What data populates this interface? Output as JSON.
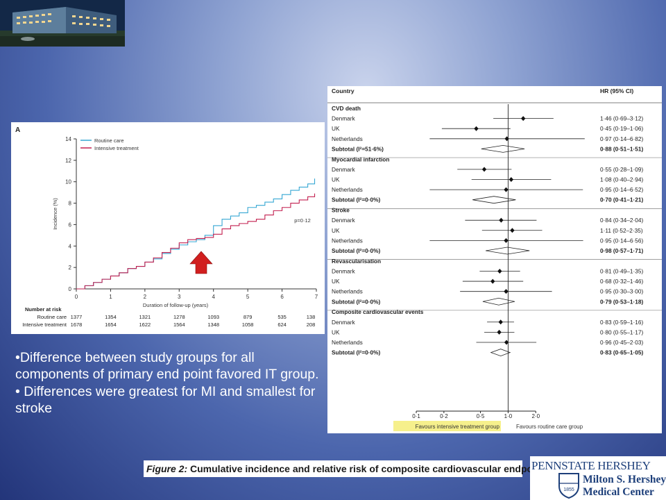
{
  "bullets": [
    "•Difference between study groups for all components of primary end point favored IT group.",
    "• Differences were greatest for MI and smallest for stroke"
  ],
  "caption": {
    "figure": "Figure 2:",
    "text": "Cumulative incidence and relative risk of composite cardiovascular endpoint"
  },
  "logo": {
    "top": "PENNSTATE HERSHEY",
    "line1": "Milton S. Hershey",
    "line2": "Medical Center",
    "year": "1855"
  },
  "colors": {
    "routine": "#35a7d3",
    "intensive": "#c21f4f",
    "arrow": "#d11f1f",
    "highlight": "#f6f08c"
  },
  "chart_data": [
    {
      "type": "line",
      "panel_label": "A",
      "xlabel": "Duration of follow-up (years)",
      "ylabel": "Incidence (%)",
      "xlim": [
        0,
        7
      ],
      "ylim": [
        0,
        14
      ],
      "xticks": [
        "0",
        "1",
        "2",
        "3",
        "4",
        "5",
        "6",
        "7"
      ],
      "yticks": [
        "0",
        "2",
        "4",
        "6",
        "8",
        "10",
        "12",
        "14"
      ],
      "legend": "top-left",
      "annotation": "p=0·12",
      "series": [
        {
          "name": "Routine care",
          "color": "#35a7d3",
          "points": [
            [
              0,
              0
            ],
            [
              0.25,
              0.3
            ],
            [
              0.5,
              0.6
            ],
            [
              0.75,
              0.9
            ],
            [
              1,
              1.2
            ],
            [
              1.25,
              1.5
            ],
            [
              1.5,
              1.9
            ],
            [
              1.75,
              2.1
            ],
            [
              2,
              2.5
            ],
            [
              2.25,
              2.8
            ],
            [
              2.5,
              3.3
            ],
            [
              2.75,
              3.7
            ],
            [
              3,
              4.1
            ],
            [
              3.25,
              4.4
            ],
            [
              3.5,
              4.6
            ],
            [
              3.75,
              5.0
            ],
            [
              4,
              5.9
            ],
            [
              4.25,
              6.5
            ],
            [
              4.5,
              6.8
            ],
            [
              4.75,
              7.1
            ],
            [
              5,
              7.6
            ],
            [
              5.25,
              7.8
            ],
            [
              5.5,
              8.1
            ],
            [
              5.75,
              8.4
            ],
            [
              6,
              8.8
            ],
            [
              6.25,
              9.2
            ],
            [
              6.5,
              9.5
            ],
            [
              6.75,
              9.8
            ],
            [
              6.9,
              9.8
            ],
            [
              6.95,
              10.3
            ]
          ]
        },
        {
          "name": "Intensive treatment",
          "color": "#c21f4f",
          "points": [
            [
              0,
              0
            ],
            [
              0.25,
              0.3
            ],
            [
              0.5,
              0.6
            ],
            [
              0.75,
              0.9
            ],
            [
              1,
              1.2
            ],
            [
              1.25,
              1.5
            ],
            [
              1.5,
              1.9
            ],
            [
              1.75,
              2.1
            ],
            [
              2,
              2.5
            ],
            [
              2.25,
              2.9
            ],
            [
              2.5,
              3.4
            ],
            [
              2.75,
              3.8
            ],
            [
              3,
              4.3
            ],
            [
              3.25,
              4.6
            ],
            [
              3.5,
              4.7
            ],
            [
              3.75,
              4.8
            ],
            [
              4,
              5.1
            ],
            [
              4.25,
              5.6
            ],
            [
              4.5,
              5.9
            ],
            [
              4.75,
              6.1
            ],
            [
              5,
              6.3
            ],
            [
              5.25,
              6.5
            ],
            [
              5.5,
              6.9
            ],
            [
              5.75,
              7.3
            ],
            [
              6,
              7.6
            ],
            [
              6.25,
              8.0
            ],
            [
              6.5,
              8.3
            ],
            [
              6.75,
              8.6
            ],
            [
              6.95,
              8.9
            ]
          ]
        }
      ],
      "risk_table": {
        "title": "Number at risk",
        "rows": [
          {
            "label": "Routine care",
            "values": [
              "1377",
              "1354",
              "1321",
              "1278",
              "1093",
              "879",
              "535",
              "138"
            ]
          },
          {
            "label": "Intensive treatment",
            "values": [
              "1678",
              "1654",
              "1622",
              "1564",
              "1348",
              "1058",
              "624",
              "208"
            ]
          }
        ]
      }
    },
    {
      "type": "forest",
      "header_left": "Country",
      "header_right": "HR (95% CI)",
      "x_scale": "log",
      "xticks": [
        "0·1",
        "0·2",
        "0·5",
        "1·0",
        "2·0"
      ],
      "xtick_values": [
        0.1,
        0.2,
        0.5,
        1.0,
        2.0
      ],
      "favours_left": "Favours intensive treatment group",
      "favours_right": "Favours routine care group",
      "groups": [
        {
          "title": "CVD death",
          "rows": [
            {
              "label": "Denmark",
              "hr": 1.46,
              "lo": 0.69,
              "hi": 3.12,
              "text": "1·46 (0·69–3·12)"
            },
            {
              "label": "UK",
              "hr": 0.45,
              "lo": 0.19,
              "hi": 1.06,
              "text": "0·45 (0·19–1·06)"
            },
            {
              "label": "Netherlands",
              "hr": 0.97,
              "lo": 0.14,
              "hi": 6.82,
              "text": "0·97 (0·14–6·82)"
            }
          ],
          "subtotal": {
            "label": "Subtotal (I²=51·6%)",
            "hr": 0.88,
            "lo": 0.51,
            "hi": 1.51,
            "text": "0·88 (0·51–1·51)"
          }
        },
        {
          "title": "Myocardial infarction",
          "rows": [
            {
              "label": "Denmark",
              "hr": 0.55,
              "lo": 0.28,
              "hi": 1.09,
              "text": "0·55 (0·28–1·09)"
            },
            {
              "label": "UK",
              "hr": 1.08,
              "lo": 0.4,
              "hi": 2.94,
              "text": "1·08 (0·40–2·94)"
            },
            {
              "label": "Netherlands",
              "hr": 0.95,
              "lo": 0.14,
              "hi": 6.52,
              "text": "0·95 (0·14–6·52)"
            }
          ],
          "subtotal": {
            "label": "Subtotal (I²=0·0%)",
            "hr": 0.7,
            "lo": 0.41,
            "hi": 1.21,
            "text": "0·70 (0·41–1·21)"
          }
        },
        {
          "title": "Stroke",
          "rows": [
            {
              "label": "Denmark",
              "hr": 0.84,
              "lo": 0.34,
              "hi": 2.04,
              "text": "0·84 (0·34–2·04)"
            },
            {
              "label": "UK",
              "hr": 1.11,
              "lo": 0.52,
              "hi": 2.35,
              "text": "1·11 (0·52–2·35)"
            },
            {
              "label": "Netherlands",
              "hr": 0.95,
              "lo": 0.14,
              "hi": 6.56,
              "text": "0·95 (0·14–6·56)"
            }
          ],
          "subtotal": {
            "label": "Subtotal (I²=0·0%)",
            "hr": 0.98,
            "lo": 0.57,
            "hi": 1.71,
            "text": "0·98 (0·57–1·71)"
          }
        },
        {
          "title": "Revascularisation",
          "rows": [
            {
              "label": "Denmark",
              "hr": 0.81,
              "lo": 0.49,
              "hi": 1.35,
              "text": "0·81 (0·49–1·35)"
            },
            {
              "label": "UK",
              "hr": 0.68,
              "lo": 0.32,
              "hi": 1.46,
              "text": "0·68 (0·32–1·46)"
            },
            {
              "label": "Netherlands",
              "hr": 0.95,
              "lo": 0.3,
              "hi": 3.0,
              "text": "0·95 (0·30–3·00)"
            }
          ],
          "subtotal": {
            "label": "Subtotal (I²=0·0%)",
            "hr": 0.79,
            "lo": 0.53,
            "hi": 1.18,
            "text": "0·79 (0·53–1·18)"
          }
        },
        {
          "title": "Composite cardiovascular events",
          "rows": [
            {
              "label": "Denmark",
              "hr": 0.83,
              "lo": 0.59,
              "hi": 1.16,
              "text": "0·83 (0·59–1·16)"
            },
            {
              "label": "UK",
              "hr": 0.8,
              "lo": 0.55,
              "hi": 1.17,
              "text": "0·80 (0·55–1·17)"
            },
            {
              "label": "Netherlands",
              "hr": 0.96,
              "lo": 0.45,
              "hi": 2.03,
              "text": "0·96 (0·45–2·03)"
            }
          ],
          "subtotal": {
            "label": "Subtotal (I²=0·0%)",
            "hr": 0.83,
            "lo": 0.65,
            "hi": 1.05,
            "text": "0·83 (0·65–1·05)"
          }
        }
      ]
    }
  ]
}
